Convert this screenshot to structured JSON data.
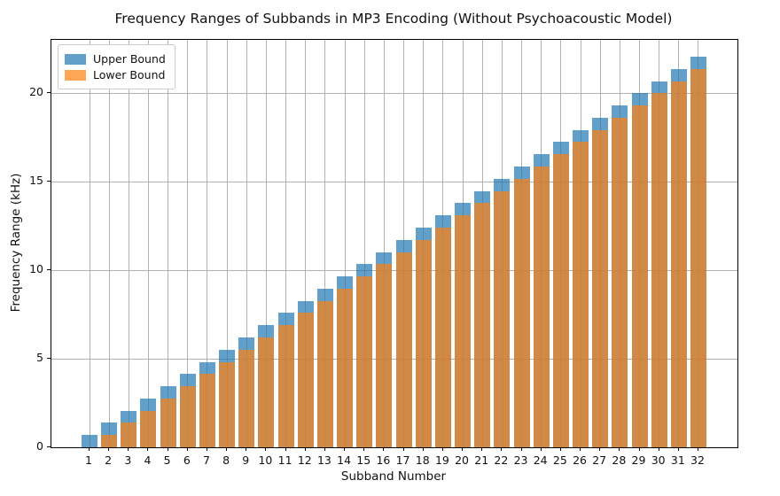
{
  "title": "Frequency Ranges of Subbands in MP3 Encoding (Without Psychoacoustic Model)",
  "axes": {
    "x_label": "Subband Number",
    "y_label": "Frequency Range (kHz)",
    "y_ticks": [
      0,
      5,
      10,
      15,
      20
    ],
    "y_max": 23.0
  },
  "legend": {
    "entries": [
      {
        "label": "Upper Bound",
        "color": "#1f77b4",
        "alpha": 0.7
      },
      {
        "label": "Lower Bound",
        "color": "#ff7f0e",
        "alpha": 0.7
      }
    ]
  },
  "colors": {
    "upper_bound": "#1f77b4",
    "lower_bound": "#ff7f0e",
    "grid": "#b2b2b2",
    "spine": "#000000",
    "background": "#ffffff"
  },
  "chart_data": {
    "type": "bar",
    "title": "Frequency Ranges of Subbands in MP3 Encoding (Without Psychoacoustic Model)",
    "xlabel": "Subband Number",
    "ylabel": "Frequency Range (kHz)",
    "categories": [
      1,
      2,
      3,
      4,
      5,
      6,
      7,
      8,
      9,
      10,
      11,
      12,
      13,
      14,
      15,
      16,
      17,
      18,
      19,
      20,
      21,
      22,
      23,
      24,
      25,
      26,
      27,
      28,
      29,
      30,
      31,
      32
    ],
    "series": [
      {
        "name": "Upper Bound",
        "color": "#1f77b4",
        "alpha": 0.7,
        "values": [
          0.689,
          1.378,
          2.067,
          2.756,
          3.445,
          4.134,
          4.823,
          5.513,
          6.202,
          6.891,
          7.58,
          8.269,
          8.958,
          9.647,
          10.336,
          11.025,
          11.714,
          12.403,
          13.092,
          13.781,
          14.47,
          15.159,
          15.848,
          16.538,
          17.227,
          17.916,
          18.605,
          19.294,
          19.983,
          20.672,
          21.361,
          22.05
        ]
      },
      {
        "name": "Lower Bound",
        "color": "#ff7f0e",
        "alpha": 0.7,
        "values": [
          0,
          0.689,
          1.378,
          2.067,
          2.756,
          3.445,
          4.134,
          4.823,
          5.513,
          6.202,
          6.891,
          7.58,
          8.269,
          8.958,
          9.647,
          10.336,
          11.025,
          11.714,
          12.403,
          13.092,
          13.781,
          14.47,
          15.159,
          15.848,
          16.538,
          17.227,
          17.916,
          18.605,
          19.294,
          19.983,
          20.672,
          21.361
        ]
      }
    ],
    "ylim": [
      0,
      23
    ],
    "grid": true,
    "legend_position": "upper left",
    "bar_style": "overlaid",
    "subband_width_khz": 0.689
  }
}
